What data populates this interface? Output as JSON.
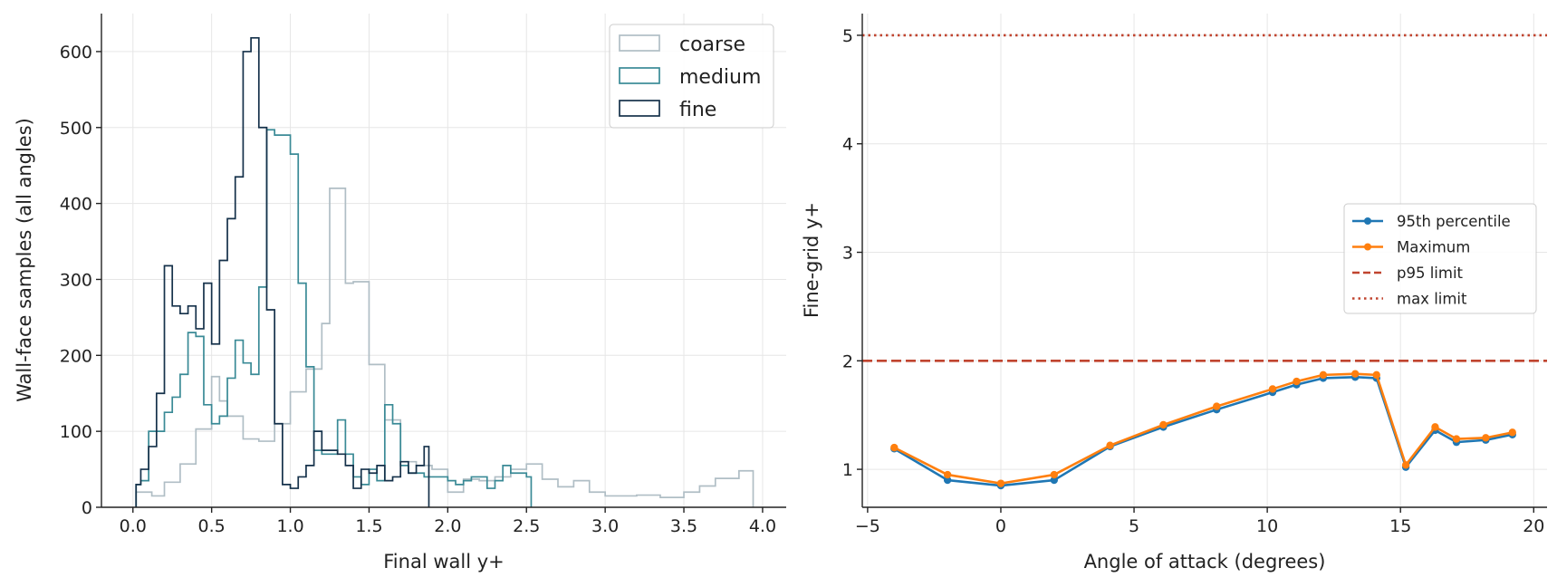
{
  "chart_data": [
    {
      "type": "histogram",
      "xlabel": "Final wall y+",
      "ylabel": "Wall-face samples (all angles)",
      "xlim": [
        -0.2,
        4.15
      ],
      "ylim": [
        0,
        650
      ],
      "xticks": [
        "0.0",
        "0.5",
        "1.0",
        "1.5",
        "2.0",
        "2.5",
        "3.0",
        "3.5",
        "4.0"
      ],
      "yticks": [
        "0",
        "100",
        "200",
        "300",
        "400",
        "500",
        "600"
      ],
      "grid": true,
      "legend_position": "top-right",
      "series": [
        {
          "name": "coarse",
          "color": "#b0bec5",
          "bin_edges": [
            0.02,
            0.12,
            0.2,
            0.3,
            0.4,
            0.5,
            0.55,
            0.6,
            0.7,
            0.8,
            0.9,
            1.0,
            1.1,
            1.2,
            1.25,
            1.35,
            1.4,
            1.5,
            1.6,
            1.7,
            1.8,
            1.9,
            2.0,
            2.1,
            2.2,
            2.3,
            2.4,
            2.5,
            2.6,
            2.7,
            2.8,
            2.9,
            3.0,
            3.2,
            3.35,
            3.5,
            3.6,
            3.7,
            3.85,
            3.94
          ],
          "counts": [
            20,
            15,
            33,
            57,
            103,
            172,
            140,
            120,
            90,
            87,
            110,
            152,
            182,
            242,
            420,
            295,
            297,
            188,
            115,
            60,
            55,
            50,
            20,
            37,
            35,
            40,
            50,
            57,
            37,
            27,
            35,
            20,
            15,
            16,
            13,
            20,
            28,
            38,
            48
          ]
        },
        {
          "name": "medium",
          "color": "#3a8a96",
          "bin_edges": [
            0.02,
            0.05,
            0.1,
            0.2,
            0.25,
            0.3,
            0.35,
            0.4,
            0.45,
            0.5,
            0.55,
            0.6,
            0.65,
            0.7,
            0.75,
            0.8,
            0.85,
            0.9,
            1.0,
            1.05,
            1.1,
            1.15,
            1.2,
            1.3,
            1.35,
            1.4,
            1.45,
            1.5,
            1.55,
            1.6,
            1.65,
            1.7,
            1.75,
            1.8,
            1.85,
            1.9,
            1.95,
            2.0,
            2.05,
            2.1,
            2.15,
            2.25,
            2.3,
            2.35,
            2.4,
            2.5,
            2.53
          ],
          "counts": [
            30,
            35,
            100,
            125,
            145,
            175,
            230,
            225,
            135,
            110,
            120,
            170,
            220,
            190,
            175,
            290,
            497,
            490,
            465,
            295,
            185,
            75,
            70,
            115,
            70,
            40,
            30,
            50,
            35,
            135,
            110,
            55,
            45,
            45,
            40,
            40,
            40,
            35,
            30,
            35,
            40,
            25,
            35,
            55,
            45,
            40
          ]
        },
        {
          "name": "fine",
          "color": "#15314a",
          "bin_edges": [
            0.02,
            0.05,
            0.1,
            0.15,
            0.2,
            0.25,
            0.3,
            0.35,
            0.4,
            0.45,
            0.5,
            0.55,
            0.6,
            0.65,
            0.7,
            0.75,
            0.8,
            0.85,
            0.9,
            0.95,
            1.0,
            1.05,
            1.1,
            1.15,
            1.2,
            1.3,
            1.35,
            1.4,
            1.45,
            1.5,
            1.55,
            1.6,
            1.65,
            1.7,
            1.75,
            1.8,
            1.85,
            1.88
          ],
          "counts": [
            30,
            50,
            80,
            150,
            318,
            265,
            255,
            265,
            235,
            295,
            215,
            325,
            380,
            435,
            600,
            618,
            500,
            260,
            110,
            30,
            25,
            40,
            55,
            100,
            75,
            70,
            55,
            25,
            50,
            45,
            55,
            35,
            40,
            60,
            45,
            55,
            80
          ]
        }
      ]
    },
    {
      "type": "line",
      "xlabel": "Angle of attack (degrees)",
      "ylabel": "Fine-grid y+",
      "xlim": [
        -5.2,
        20.5
      ],
      "ylim": [
        0.65,
        5.2
      ],
      "xticks": [
        "−5",
        "0",
        "5",
        "10",
        "15",
        "20"
      ],
      "yticks": [
        "1",
        "2",
        "3",
        "4",
        "5"
      ],
      "grid": true,
      "legend_position": "center-right",
      "x": [
        -4,
        -2,
        0,
        2,
        4.1,
        6.1,
        8.1,
        10.2,
        11.1,
        12.1,
        13.3,
        14.1,
        15.2,
        16.3,
        17.1,
        18.2,
        19.2
      ],
      "series": [
        {
          "name": "95th percentile",
          "color": "#1f77b4",
          "values": [
            1.19,
            0.9,
            0.85,
            0.9,
            1.21,
            1.39,
            1.55,
            1.71,
            1.78,
            1.84,
            1.85,
            1.84,
            1.02,
            1.36,
            1.25,
            1.27,
            1.32
          ]
        },
        {
          "name": "Maximum",
          "color": "#ff7f0e",
          "values": [
            1.2,
            0.95,
            0.87,
            0.95,
            1.22,
            1.41,
            1.58,
            1.74,
            1.81,
            1.87,
            1.88,
            1.87,
            1.04,
            1.39,
            1.28,
            1.29,
            1.34
          ]
        }
      ],
      "reference_lines": [
        {
          "name": "p95 limit",
          "y": 2,
          "style": "dashed",
          "color": "#c0442f"
        },
        {
          "name": "max limit",
          "y": 5,
          "style": "dotted",
          "color": "#c0442f"
        }
      ]
    }
  ]
}
